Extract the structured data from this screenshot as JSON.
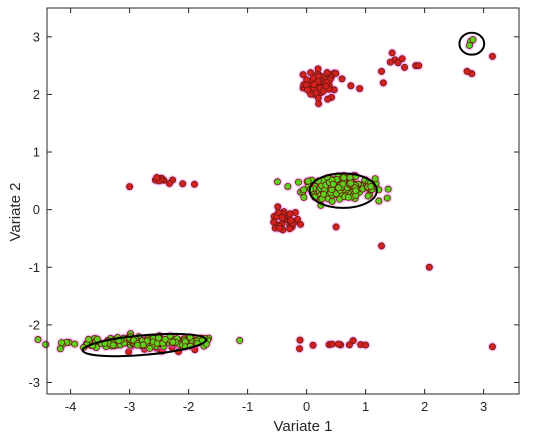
{
  "chart_data": {
    "type": "scatter",
    "title": "",
    "xlabel": "Variate 1",
    "ylabel": "Variate 2",
    "xlim": [
      -4.4,
      3.6
    ],
    "ylim": [
      -3.2,
      3.5
    ],
    "xticks": [
      -4,
      -3,
      -2,
      -1,
      0,
      1,
      2,
      3
    ],
    "yticks": [
      -3,
      -2,
      -1,
      0,
      1,
      2,
      3
    ],
    "xtick_labels": [
      "-4",
      "-3",
      "-2",
      "-1",
      "0",
      "1",
      "2",
      "3"
    ],
    "ytick_labels": [
      "-3",
      "-2",
      "-1",
      "0",
      "1",
      "2",
      "3"
    ],
    "grid": false,
    "legend": "none",
    "colors": {
      "red_points": "#d42020",
      "green_points": "#5ad21e",
      "point_edge": "#6b1a0a",
      "glow": "#ff66ff",
      "ellipse": "#000000"
    },
    "series": [
      {
        "color": "#d42020",
        "clusters": [
          {
            "center": [
              0.25,
              2.18
            ],
            "spread": [
              0.15,
              0.13
            ],
            "n": 55
          },
          {
            "center": [
              -0.4,
              -0.2
            ],
            "spread": [
              0.14,
              0.1
            ],
            "n": 32
          },
          {
            "center": [
              -2.45,
              0.48
            ],
            "spread": [
              0.12,
              0.04
            ],
            "n": 8
          },
          {
            "center": [
              -2.35,
              -2.38
            ],
            "spread": [
              0.35,
              0.06
            ],
            "n": 16
          },
          {
            "center": [
              0.35,
              -2.33
            ],
            "spread": [
              0.3,
              0.06
            ],
            "n": 10
          }
        ],
        "points": [
          [
            1.45,
            2.72
          ],
          [
            1.5,
            2.6
          ],
          [
            1.55,
            2.55
          ],
          [
            1.62,
            2.62
          ],
          [
            1.42,
            2.56
          ],
          [
            1.66,
            2.47
          ],
          [
            1.27,
            2.4
          ],
          [
            1.3,
            2.2
          ],
          [
            1.85,
            2.5
          ],
          [
            1.9,
            2.5
          ],
          [
            2.8,
            2.36
          ],
          [
            2.72,
            2.4
          ],
          [
            3.15,
            2.66
          ],
          [
            0.9,
            2.1
          ],
          [
            0.75,
            2.15
          ],
          [
            0.6,
            2.27
          ],
          [
            -2.1,
            0.45
          ],
          [
            -1.9,
            0.44
          ],
          [
            -3.0,
            0.4
          ],
          [
            0.5,
            -0.3
          ],
          [
            1.27,
            -0.63
          ],
          [
            2.08,
            -1.0
          ],
          [
            3.15,
            -2.38
          ],
          [
            1.0,
            -2.35
          ]
        ]
      },
      {
        "color": "#5ad21e",
        "clusters": [
          {
            "center": [
              0.55,
              0.38
            ],
            "spread": [
              0.3,
              0.09
            ],
            "n": 210
          },
          {
            "center": [
              -2.7,
              -2.3
            ],
            "spread": [
              0.65,
              0.045
            ],
            "n": 190
          }
        ],
        "points": [
          [
            2.78,
            2.92
          ],
          [
            2.76,
            2.85
          ],
          [
            2.82,
            2.95
          ]
        ]
      }
    ],
    "ellipses": [
      {
        "center": [
          0.62,
          0.33
        ],
        "rx": 0.57,
        "ry": 0.3
      },
      {
        "center": [
          -2.75,
          -2.35
        ],
        "rx": 1.05,
        "ry": 0.17,
        "angle_deg": 5
      },
      {
        "center": [
          2.8,
          2.88
        ],
        "rx": 0.21,
        "ry": 0.19
      }
    ]
  }
}
